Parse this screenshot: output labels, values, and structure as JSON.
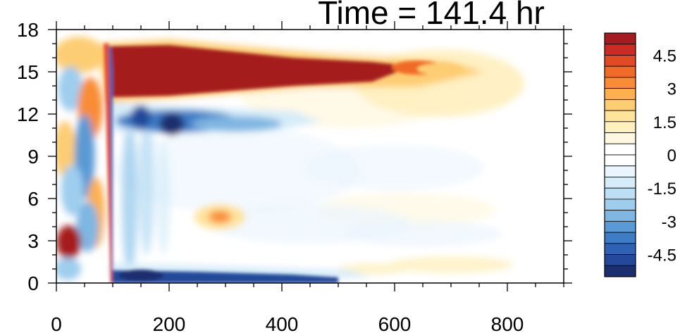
{
  "chart_data": {
    "type": "heatmap",
    "title": "Time = 141.4 hr",
    "xlabel": "",
    "ylabel": "",
    "xlim": [
      0,
      900
    ],
    "ylim": [
      0,
      18
    ],
    "x_ticks": [
      0,
      200,
      400,
      600,
      800
    ],
    "x_tick_labels": [
      "0",
      "200",
      "400",
      "600",
      "800"
    ],
    "y_ticks": [
      0,
      3,
      6,
      9,
      12,
      15,
      18
    ],
    "y_tick_labels": [
      "0",
      "3",
      "6",
      "9",
      "12",
      "15",
      "18"
    ],
    "grid": false,
    "legend": "right",
    "colorbar": {
      "levels": [
        -5.5,
        -5,
        -4.5,
        -4,
        -3.5,
        -3,
        -2.5,
        -2,
        -1.5,
        -1,
        -0.5,
        0,
        0.5,
        1,
        1.5,
        2,
        2.5,
        3,
        3.5,
        4,
        4.5,
        5,
        5.5
      ],
      "labeled_values": [
        4.5,
        3,
        1.5,
        0,
        -1.5,
        -3,
        -4.5
      ],
      "tick_labels": [
        "4.5",
        "3",
        "1.5",
        "0",
        "-1.5",
        "-3",
        "-4.5"
      ],
      "colors": [
        "#1b2f6e",
        "#24489a",
        "#2f62b4",
        "#3d7cc6",
        "#5a9ad4",
        "#7fb6e2",
        "#9fcdee",
        "#bcdff5",
        "#d6ecf9",
        "#ebf5fd",
        "#ffffff",
        "#ffffff",
        "#fff8e1",
        "#fff0bf",
        "#fee39a",
        "#fdcd73",
        "#fcb04f",
        "#f98c34",
        "#f06a28",
        "#e24a26",
        "#cc2a24",
        "#a51b1f"
      ]
    },
    "features": [
      {
        "name": "upper positive band",
        "x_range": [
          90,
          700
        ],
        "y_center": 15,
        "value": 5.5
      },
      {
        "name": "negative band below",
        "x_range": [
          100,
          400
        ],
        "y_center": 11.5,
        "value": -4
      },
      {
        "name": "near-surface negative band",
        "x_range": [
          100,
          520
        ],
        "y_center": 0.5,
        "value": -5
      },
      {
        "name": "front",
        "x": 95,
        "y_range": [
          0,
          17
        ],
        "value": 4.5
      },
      {
        "name": "low-level positive feature",
        "x": 20,
        "y_center": 3,
        "value": 4
      },
      {
        "name": "mid-level positive feature",
        "x": 290,
        "y_center": 5,
        "value": 2.5
      },
      {
        "name": "far-field positive anomaly",
        "x_range": [
          550,
          850
        ],
        "y_center": 14,
        "value": 1
      }
    ]
  }
}
